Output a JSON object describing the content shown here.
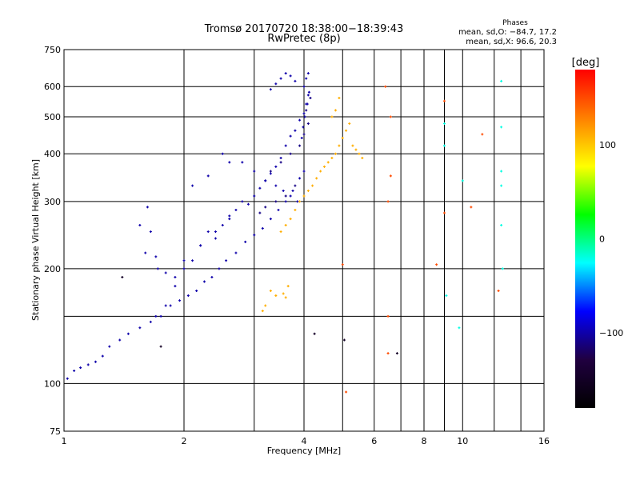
{
  "chart_data": {
    "type": "scatter",
    "title": "Tromsø 20170720 18:38:00−18:39:43",
    "subtitle": "RwPretec (8p)",
    "xlabel": "Frequency [MHz]",
    "ylabel": "Stationary phase Virtual Height [km]",
    "x_scale": "log",
    "y_scale": "log",
    "xlim": [
      1,
      16
    ],
    "ylim": [
      75,
      750
    ],
    "x_ticks": [
      1,
      2,
      4,
      6,
      8,
      10,
      16
    ],
    "x_tick_labels": [
      "1",
      "2",
      "4",
      "6",
      "8",
      "10",
      "16"
    ],
    "y_ticks": [
      75,
      100,
      200,
      300,
      400,
      500,
      600,
      750
    ],
    "y_tick_labels": [
      "75",
      "100",
      "200",
      "300",
      "400",
      "500",
      "600",
      "750"
    ],
    "x_grid": [
      1,
      2,
      3,
      4,
      5,
      6,
      7,
      8,
      9,
      10,
      12,
      14,
      16
    ],
    "y_grid": [
      75,
      100,
      150,
      200,
      300,
      400,
      500,
      600,
      750
    ],
    "grid": true,
    "phase_info": {
      "title": "Phases",
      "line_o": "mean, sd,O: −84.7, 17.2",
      "line_x": "mean, sd,X:  96.6, 20.3"
    },
    "colorbar": {
      "label": "[deg]",
      "range": [
        -180,
        180
      ],
      "ticks": [
        100,
        0,
        -100
      ],
      "tick_labels": [
        "100",
        "0",
        "−100"
      ],
      "colors": [
        "#ff0000",
        "#ff8000",
        "#ffff00",
        "#00ff00",
        "#00ffff",
        "#0000ff",
        "#200040",
        "#000000"
      ]
    },
    "series": [
      {
        "color_phase": -100,
        "x": [
          1.02,
          1.06,
          1.1,
          1.15,
          1.2,
          1.25,
          1.3,
          1.38,
          1.45,
          1.55,
          1.65,
          1.75,
          1.85,
          1.95,
          2.05,
          2.15,
          2.25,
          2.35,
          2.45,
          2.55,
          2.7,
          2.85,
          3.0,
          3.15,
          3.3,
          3.45,
          3.6,
          3.75,
          3.9,
          4.0,
          1.62,
          1.65,
          1.7,
          1.6,
          1.55,
          1.72,
          1.8,
          1.9,
          2.0,
          2.1,
          2.2,
          2.3,
          2.4,
          2.5,
          2.6,
          2.7,
          2.8,
          2.9,
          3.0,
          3.1,
          3.2,
          3.3,
          3.4,
          3.5,
          3.6,
          3.7,
          3.8,
          3.9,
          4.0,
          4.05,
          4.1,
          4.0,
          4.05,
          4.1,
          3.95,
          3.98,
          4.02,
          4.08,
          4.12,
          3.85,
          3.7,
          3.55,
          3.4,
          3.2,
          3.0,
          2.8,
          2.6,
          2.4,
          2.2,
          2.0,
          1.9,
          1.8,
          1.7,
          3.3,
          3.4,
          3.5,
          3.6,
          3.7,
          3.8,
          2.5,
          2.6,
          2.3,
          2.1
        ],
        "y": [
          103,
          108,
          110,
          112,
          114,
          118,
          125,
          130,
          135,
          140,
          145,
          150,
          160,
          165,
          170,
          175,
          185,
          190,
          200,
          210,
          220,
          235,
          245,
          255,
          270,
          285,
          300,
          320,
          345,
          360,
          290,
          250,
          215,
          220,
          260,
          200,
          195,
          190,
          200,
          210,
          230,
          250,
          240,
          260,
          275,
          285,
          300,
          295,
          310,
          325,
          340,
          355,
          370,
          390,
          420,
          445,
          460,
          490,
          510,
          540,
          570,
          600,
          630,
          650,
          440,
          470,
          500,
          540,
          580,
          300,
          310,
          320,
          330,
          340,
          360,
          380,
          270,
          250,
          230,
          210,
          180,
          160,
          150,
          590,
          610,
          630,
          650,
          640,
          620,
          400,
          380,
          350,
          330
        ]
      },
      {
        "color_phase": -110,
        "x": [
          3.3,
          3.5,
          3.7,
          3.9,
          4.0,
          4.1,
          4.05,
          4.15,
          3.8,
          3.6,
          3.4,
          3.2,
          3.1
        ],
        "y": [
          360,
          380,
          400,
          420,
          450,
          480,
          520,
          560,
          330,
          310,
          300,
          290,
          280
        ]
      },
      {
        "color_phase": 110,
        "x": [
          3.5,
          3.6,
          3.7,
          3.8,
          3.9,
          4.0,
          4.1,
          4.2,
          4.3,
          4.4,
          4.5,
          4.6,
          4.7,
          4.8,
          4.9,
          5.0,
          5.1,
          5.2,
          5.3,
          5.4,
          5.5,
          5.6,
          4.8,
          4.9,
          4.7,
          3.3,
          3.4,
          3.55,
          3.6,
          3.65,
          3.2,
          3.15
        ],
        "y": [
          250,
          260,
          270,
          285,
          300,
          310,
          320,
          330,
          345,
          360,
          370,
          380,
          390,
          400,
          420,
          440,
          460,
          480,
          420,
          410,
          400,
          390,
          520,
          560,
          500,
          175,
          170,
          172,
          168,
          180,
          160,
          155
        ]
      },
      {
        "color_phase": 150,
        "x": [
          6.5,
          6.5,
          6.5,
          6.6,
          6.6,
          6.4,
          9.0,
          9.0,
          8.6,
          10.5,
          11.2,
          12.3,
          5.0,
          5.1
        ],
        "y": [
          150,
          120,
          300,
          350,
          500,
          600,
          550,
          280,
          205,
          290,
          450,
          175,
          205,
          95
        ]
      },
      {
        "color_phase": -20,
        "x": [
          12.5,
          12.5,
          12.5,
          12.5,
          12.6,
          9.0,
          9.0,
          10.0,
          9.8,
          9.1,
          12.5
        ],
        "y": [
          620,
          470,
          360,
          330,
          200,
          480,
          420,
          340,
          140,
          170,
          260
        ]
      },
      {
        "color_phase": -150,
        "x": [
          1.4,
          1.75,
          4.25,
          5.05,
          6.85
        ],
        "y": [
          190,
          125,
          135,
          130,
          120
        ]
      }
    ]
  }
}
